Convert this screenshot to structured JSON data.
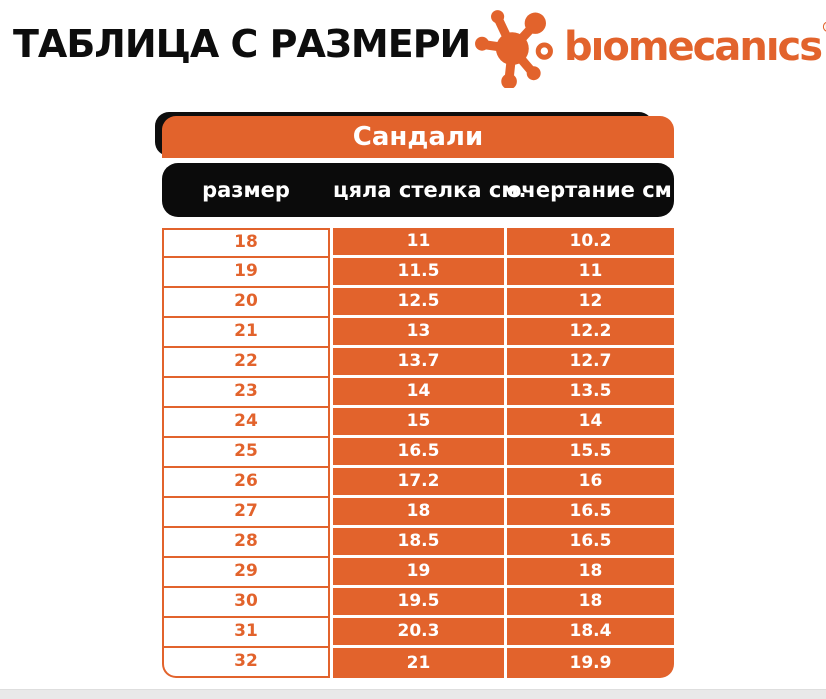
{
  "title": "ТАБЛИЦА С РАЗМЕРИ",
  "brand": {
    "name": "bıomecanıcs",
    "registered_mark": "®",
    "logo_icon": "splat-molecule-icon",
    "color": "#e2632c"
  },
  "table": {
    "caption": "Сандали",
    "columns": [
      "размер",
      "цяла стелка см.",
      "очертание см."
    ],
    "rows": [
      [
        "18",
        "11",
        "10.2"
      ],
      [
        "19",
        "11.5",
        "11"
      ],
      [
        "20",
        "12.5",
        "12"
      ],
      [
        "21",
        "13",
        "12.2"
      ],
      [
        "22",
        "13.7",
        "12.7"
      ],
      [
        "23",
        "14",
        "13.5"
      ],
      [
        "24",
        "15",
        "14"
      ],
      [
        "25",
        "16.5",
        "15.5"
      ],
      [
        "26",
        "17.2",
        "16"
      ],
      [
        "27",
        "18",
        "16.5"
      ],
      [
        "28",
        "18.5",
        "16.5"
      ],
      [
        "29",
        "19",
        "18"
      ],
      [
        "30",
        "19.5",
        "18"
      ],
      [
        "31",
        "20.3",
        "18.4"
      ],
      [
        "32",
        "21",
        "19.9"
      ]
    ]
  },
  "colors": {
    "orange": "#e2632c",
    "black": "#0e0e0e",
    "white": "#ffffff"
  },
  "chart_data": {
    "type": "table",
    "title": "Сандали",
    "columns": [
      "размер",
      "цяла стелка см.",
      "очертание см."
    ],
    "sizes": [
      18,
      19,
      20,
      21,
      22,
      23,
      24,
      25,
      26,
      27,
      28,
      29,
      30,
      31,
      32
    ],
    "insole_cm": [
      11,
      11.5,
      12.5,
      13,
      13.7,
      14,
      15,
      16.5,
      17.2,
      18,
      18.5,
      19,
      19.5,
      20.3,
      21
    ],
    "outline_cm": [
      10.2,
      11,
      12,
      12.2,
      12.7,
      13.5,
      14,
      15.5,
      16,
      16.5,
      16.5,
      18,
      18,
      18.4,
      19.9
    ]
  }
}
